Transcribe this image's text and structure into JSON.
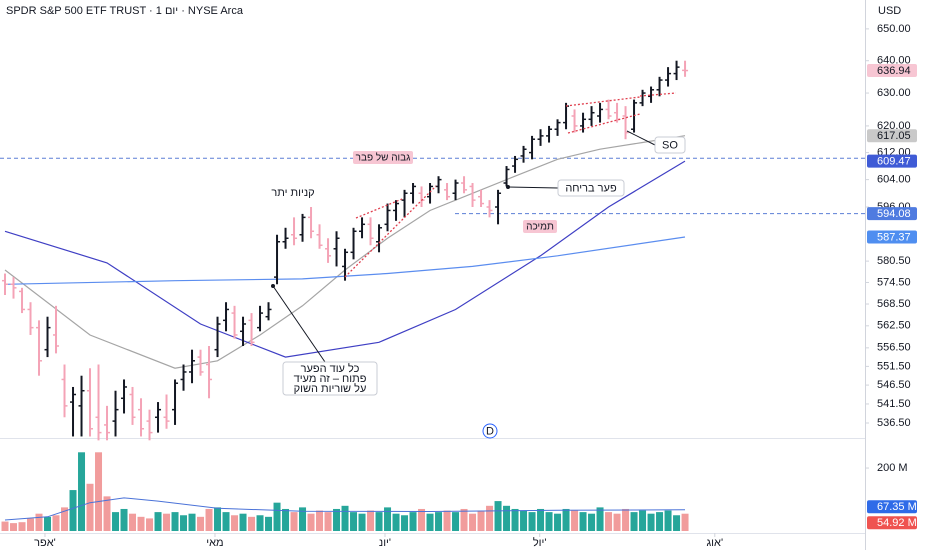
{
  "header": {
    "title": "SPDR S&P 500 ETF TRUST · 1 יום · NYSE Arca",
    "currency": "USD"
  },
  "chart_data": [
    {
      "type": "ohlc",
      "ohlc": [
        [
          575,
          577,
          571,
          574
        ],
        [
          574,
          576,
          570,
          573
        ],
        [
          572,
          573,
          566,
          567
        ],
        [
          567,
          569,
          560,
          562
        ],
        [
          562,
          564,
          549,
          553
        ],
        [
          556,
          565,
          554,
          562
        ],
        [
          560,
          568,
          555,
          557
        ],
        [
          548,
          552,
          538,
          541
        ],
        [
          542,
          546,
          533,
          544
        ],
        [
          541,
          549,
          533,
          545
        ],
        [
          545,
          551,
          533,
          535
        ],
        [
          538,
          552,
          532,
          534
        ],
        [
          536,
          541,
          532,
          534
        ],
        [
          537,
          545,
          533,
          540
        ],
        [
          543,
          548,
          539,
          546
        ],
        [
          544,
          546,
          536,
          538
        ],
        [
          540,
          543,
          533,
          535
        ],
        [
          537,
          540,
          532,
          534
        ],
        [
          538,
          542,
          534,
          540
        ],
        [
          538,
          544,
          535,
          537
        ],
        [
          540,
          548,
          536,
          547
        ],
        [
          548,
          552,
          545,
          550
        ],
        [
          550,
          556,
          547,
          553
        ],
        [
          554,
          556,
          549,
          550
        ],
        [
          552,
          557,
          543,
          548
        ],
        [
          556,
          565,
          554,
          563
        ],
        [
          564,
          569,
          561,
          567
        ],
        [
          566,
          568,
          559,
          560
        ],
        [
          561,
          565,
          557,
          563
        ],
        [
          564,
          566,
          557,
          558
        ],
        [
          562,
          568,
          561,
          566
        ],
        [
          565,
          569,
          564,
          567
        ],
        [
          576,
          588,
          574,
          586
        ],
        [
          586,
          590,
          584,
          587
        ],
        [
          588,
          593,
          585,
          587
        ],
        [
          588,
          594,
          586,
          593
        ],
        [
          593,
          596,
          587,
          589
        ],
        [
          588,
          591,
          584,
          585
        ],
        [
          584,
          587,
          580,
          582
        ],
        [
          584,
          589,
          579,
          587
        ],
        [
          579,
          584,
          575,
          583
        ],
        [
          583,
          590,
          581,
          589
        ],
        [
          589,
          593,
          587,
          591
        ],
        [
          591,
          593,
          585,
          587
        ],
        [
          586,
          591,
          583,
          590
        ],
        [
          591,
          597,
          589,
          595
        ],
        [
          595,
          598,
          592,
          597
        ],
        [
          598,
          601,
          593,
          600
        ],
        [
          600,
          603,
          597,
          602
        ],
        [
          600,
          602,
          596,
          598
        ],
        [
          599,
          603,
          597,
          602
        ],
        [
          602,
          605,
          600,
          604
        ],
        [
          601,
          603,
          598,
          599
        ],
        [
          600,
          604,
          598,
          603
        ],
        [
          603,
          605,
          600,
          601
        ],
        [
          602,
          603,
          596,
          598
        ],
        [
          599,
          601,
          596,
          597
        ],
        [
          596,
          598,
          593,
          595
        ],
        [
          596,
          601,
          591,
          600
        ],
        [
          603,
          608,
          602,
          607
        ],
        [
          608,
          611,
          606,
          610
        ],
        [
          611,
          614,
          609,
          613
        ],
        [
          612,
          617,
          610,
          616
        ],
        [
          616,
          619,
          614,
          617
        ],
        [
          617,
          620,
          615,
          619
        ],
        [
          619,
          622,
          617,
          621
        ],
        [
          621,
          627,
          619,
          626
        ],
        [
          623,
          625,
          618,
          620
        ],
        [
          620,
          624,
          618,
          622
        ],
        [
          622,
          626,
          620,
          624
        ],
        [
          623,
          627,
          621,
          625
        ],
        [
          625,
          628,
          622,
          623
        ],
        [
          624,
          627,
          621,
          622
        ],
        [
          623,
          626,
          616,
          618
        ],
        [
          619,
          628,
          618,
          627
        ],
        [
          627,
          631,
          626,
          630
        ],
        [
          629,
          632,
          627,
          631
        ],
        [
          631,
          635,
          629,
          634
        ],
        [
          634,
          638,
          632,
          636
        ],
        [
          636,
          640,
          634,
          638
        ],
        [
          637,
          640,
          635,
          636.94
        ]
      ],
      "up_color": "#131722",
      "down_color": "#f4a3b6",
      "log_scale": true,
      "ylim": [
        532.6,
        659.2
      ],
      "yticks": [
        {
          "value": 650,
          "label": "650.00"
        },
        {
          "value": 640,
          "label": "640.00"
        },
        {
          "value": 630,
          "label": "630.00"
        },
        {
          "value": 620,
          "label": "620.00"
        },
        {
          "value": 612,
          "label": "612.00"
        },
        {
          "value": 604,
          "label": "604.00"
        },
        {
          "value": 596,
          "label": "596.00"
        },
        {
          "value": 580.5,
          "label": "580.50"
        },
        {
          "value": 574.5,
          "label": "574.50"
        },
        {
          "value": 568.5,
          "label": "568.50"
        },
        {
          "value": 562.5,
          "label": "562.50"
        },
        {
          "value": 556.5,
          "label": "556.50"
        },
        {
          "value": 551.5,
          "label": "551.50"
        },
        {
          "value": 546.5,
          "label": "546.50"
        },
        {
          "value": 541.5,
          "label": "541.50"
        },
        {
          "value": 536.5,
          "label": "536.50"
        }
      ],
      "xlim": [
        -0.59,
        101.17
      ],
      "xticks": [
        {
          "value": 4.7,
          "label": "אפר'"
        },
        {
          "value": 24.7,
          "label": "מאי"
        },
        {
          "value": 44.7,
          "label": "יונ'"
        },
        {
          "value": 62.9,
          "label": "יול'"
        },
        {
          "value": 83.5,
          "label": "אוג'"
        }
      ],
      "moving_averages": [
        {
          "color": "#a5a5a5",
          "x": [
            0,
            10,
            20,
            25,
            30,
            35,
            40,
            45,
            50,
            55,
            60,
            65,
            70,
            75,
            80
          ],
          "values": [
            578,
            560,
            551,
            553,
            560,
            568,
            578,
            587,
            595,
            600,
            605,
            610,
            613,
            615,
            617.05
          ]
        },
        {
          "color": "#3f3fc4",
          "x": [
            0,
            12,
            23,
            33,
            44,
            53,
            63,
            71,
            80
          ],
          "values": [
            589,
            580,
            563,
            554,
            558,
            567,
            582,
            596,
            609.47
          ]
        },
        {
          "color": "#5b8def",
          "x": [
            0,
            20,
            35,
            45,
            55,
            65,
            80
          ],
          "values": [
            574,
            575,
            575.5,
            577,
            579,
            582,
            587.37
          ]
        }
      ],
      "hlines": [
        {
          "value": 610.3,
          "color": "#5b7fd6"
        },
        {
          "value": 594.08,
          "color": "#5b7fd6"
        }
      ],
      "annotations": [
        "גבוה של פבר",
        "קניות יתר",
        "פער בריחה",
        "תמיכה",
        "SO"
      ],
      "callout": [
        "כל עוד הפער",
        "פתוח – זה מעיד",
        "על שוריות השוק"
      ],
      "marker": "D"
    },
    {
      "type": "bar",
      "values": [
        30,
        25,
        28,
        40,
        55,
        45,
        50,
        75,
        130,
        250,
        150,
        250,
        110,
        60,
        70,
        55,
        45,
        40,
        60,
        55,
        60,
        50,
        55,
        45,
        70,
        75,
        60,
        50,
        55,
        45,
        50,
        45,
        90,
        70,
        60,
        75,
        55,
        65,
        60,
        70,
        80,
        60,
        55,
        65,
        60,
        75,
        55,
        50,
        60,
        70,
        55,
        60,
        65,
        60,
        70,
        55,
        65,
        80,
        95,
        80,
        70,
        65,
        60,
        70,
        60,
        55,
        70,
        65,
        60,
        55,
        75,
        60,
        55,
        70,
        60,
        65,
        55,
        60,
        65,
        50,
        54.92
      ],
      "value_labels": [
        null,
        null,
        null,
        null,
        null,
        null,
        null,
        null,
        null,
        null,
        null,
        null,
        null,
        null,
        null,
        null,
        null,
        null,
        null,
        null,
        null,
        null,
        null,
        null,
        null,
        null,
        null,
        null,
        null,
        null,
        null,
        null,
        null,
        null,
        null,
        null,
        null,
        null,
        null,
        null,
        null,
        null,
        null,
        null,
        null,
        null,
        null,
        null,
        null,
        null,
        null,
        null,
        null,
        null,
        null,
        null,
        null,
        null,
        null,
        null,
        null,
        null,
        null,
        null,
        null,
        null,
        null,
        null,
        null,
        null,
        null,
        null,
        null,
        null,
        null,
        null,
        null,
        null,
        null,
        null,
        "54.92 M"
      ],
      "up_color": "#26a69a",
      "down_color": "#f19c9c",
      "ylim": [
        0,
        270
      ],
      "yticks": [
        {
          "value": 200,
          "label": "200 M"
        }
      ],
      "ma": {
        "color": "#4a72d8",
        "x": [
          0,
          5,
          10,
          14,
          18,
          25,
          35,
          50,
          65,
          80
        ],
        "values": [
          35,
          45,
          90,
          105,
          95,
          72,
          63,
          62,
          66,
          67.35
        ],
        "value_labels": [
          null,
          null,
          null,
          null,
          null,
          null,
          null,
          null,
          null,
          "67.35 M"
        ]
      }
    }
  ]
}
